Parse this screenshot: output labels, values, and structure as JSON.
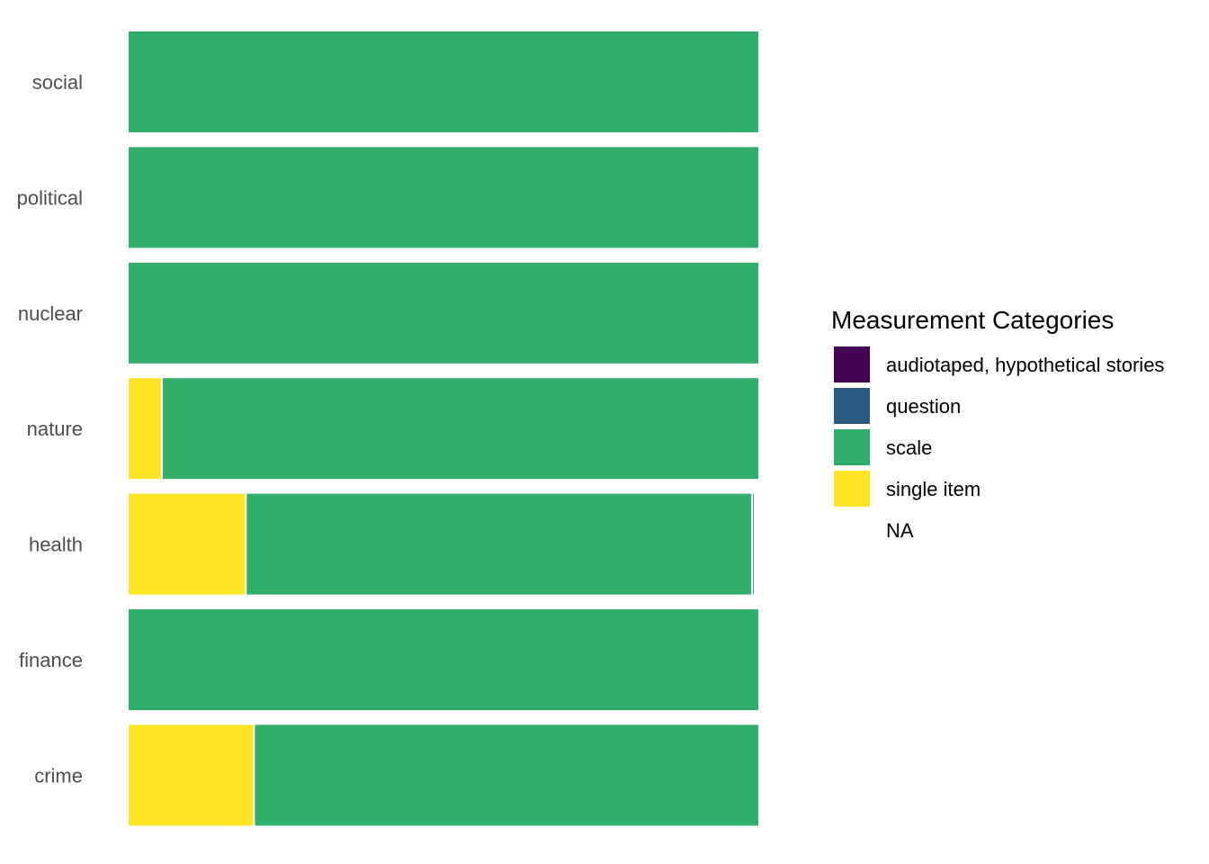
{
  "chart_data": {
    "type": "bar",
    "orientation": "horizontal",
    "stacked": true,
    "normalized": true,
    "categories": [
      "social",
      "political",
      "nuclear",
      "nature",
      "health",
      "finance",
      "crime"
    ],
    "series": [
      {
        "name": "audiotaped, hypothetical stories",
        "color": "#440154",
        "values": [
          0,
          0,
          0,
          0,
          0.002,
          0,
          0
        ]
      },
      {
        "name": "question",
        "color": "#2A5C83",
        "values": [
          0,
          0,
          0,
          0,
          0.004,
          0,
          0
        ]
      },
      {
        "name": "scale",
        "color": "#31AE6A",
        "values": [
          1,
          1,
          1,
          0.946,
          0.802,
          1,
          0.8
        ]
      },
      {
        "name": "single item",
        "color": "#FDE525",
        "values": [
          0,
          0,
          0,
          0.054,
          0.187,
          0,
          0.2
        ]
      },
      {
        "name": "NA",
        "color": "#FFFFFF",
        "values": [
          0,
          0,
          0,
          0,
          0.005,
          0,
          0
        ]
      }
    ],
    "stack_order": [
      "single item",
      "scale",
      "question",
      "audiotaped, hypothetical stories",
      "NA"
    ],
    "legend": {
      "title": "Measurement Categories",
      "position": "right"
    },
    "xlim": [
      0,
      1
    ],
    "grid": false
  }
}
